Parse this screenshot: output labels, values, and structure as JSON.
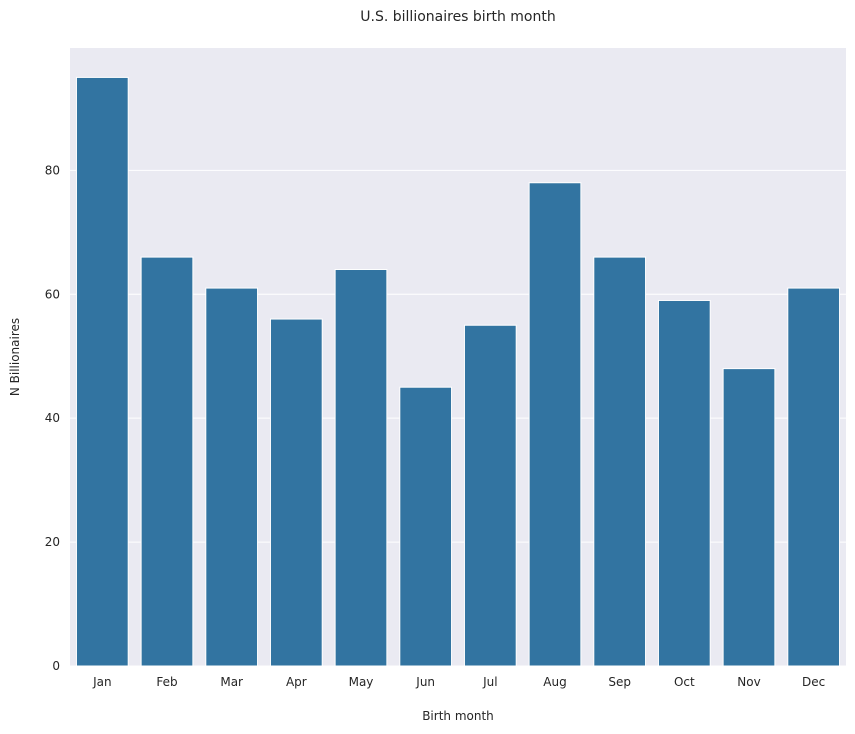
{
  "chart_data": {
    "type": "bar",
    "title": "U.S. billionaires birth month",
    "xlabel": "Birth month",
    "ylabel": "N Billionaires",
    "categories": [
      "Jan",
      "Feb",
      "Mar",
      "Apr",
      "May",
      "Jun",
      "Jul",
      "Aug",
      "Sep",
      "Oct",
      "Nov",
      "Dec"
    ],
    "values": [
      95,
      66,
      61,
      56,
      64,
      45,
      55,
      78,
      66,
      59,
      48,
      61
    ],
    "ylim": [
      0,
      99.75
    ],
    "yticks": [
      0,
      20,
      40,
      60,
      80
    ],
    "grid": true,
    "colors": {
      "bar": "#3274a1",
      "plot_background": "#eaeaf2",
      "grid": "#ffffff"
    }
  }
}
